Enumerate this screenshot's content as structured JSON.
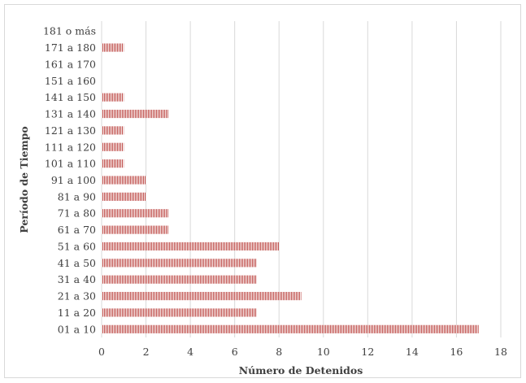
{
  "chart_data": {
    "type": "bar",
    "orientation": "horizontal",
    "title": "",
    "xlabel": "Número de Detenidos",
    "ylabel": "Período de Tiempo",
    "xlim": [
      0,
      18
    ],
    "xticks": [
      0,
      2,
      4,
      6,
      8,
      10,
      12,
      14,
      16,
      18
    ],
    "grid": "vertical",
    "legend": "none",
    "bar_color": "#c0504d",
    "bar_pattern": "vertical-lines",
    "categories": [
      "01 a 10",
      "11 a 20",
      "21 a 30",
      "31 a 40",
      "41 a 50",
      "51 a 60",
      "61 a 70",
      "71 a 80",
      "81 a 90",
      "91 a 100",
      "101 a 110",
      "111 a 120",
      "121 a 130",
      "131 a 140",
      "141 a 150",
      "151 a 160",
      "161 a 170",
      "171 a 180",
      "181 o más"
    ],
    "values": [
      17,
      7,
      9,
      7,
      7,
      8,
      3,
      3,
      2,
      2,
      1,
      1,
      1,
      3,
      1,
      0,
      0,
      1,
      0
    ]
  }
}
